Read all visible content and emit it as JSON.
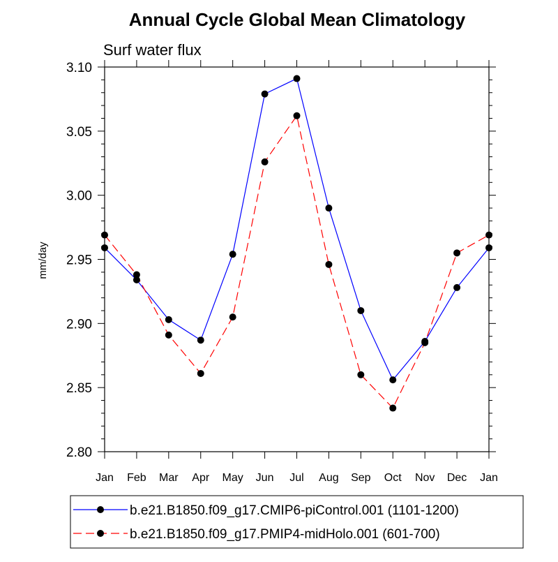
{
  "chart_data": {
    "type": "line",
    "title": "Annual Cycle Global Mean Climatology",
    "subtitle": "Surf water flux",
    "xlabel": "",
    "ylabel": "mm/day",
    "categories": [
      "Jan",
      "Feb",
      "Mar",
      "Apr",
      "May",
      "Jun",
      "Jul",
      "Aug",
      "Sep",
      "Oct",
      "Nov",
      "Dec",
      "Jan"
    ],
    "ylim": [
      2.8,
      3.1
    ],
    "yticks": [
      "2.80",
      "2.85",
      "2.90",
      "2.95",
      "3.00",
      "3.05",
      "3.10"
    ],
    "legend_position": "bottom",
    "grid": false,
    "series": [
      {
        "name": "b.e21.B1850.f09_g17.CMIP6-piControl.001 (1101-1200)",
        "color": "#0000ff",
        "dash": "solid",
        "values": [
          2.959,
          2.934,
          2.903,
          2.887,
          2.954,
          3.079,
          3.091,
          2.99,
          2.91,
          2.856,
          2.886,
          2.928,
          2.959
        ]
      },
      {
        "name": "b.e21.B1850.f09_g17.PMIP4-midHolo.001 (601-700)",
        "color": "#ff0000",
        "dash": "dashed",
        "values": [
          2.969,
          2.938,
          2.891,
          2.861,
          2.905,
          3.026,
          3.062,
          2.946,
          2.86,
          2.834,
          2.885,
          2.955,
          2.969
        ]
      }
    ]
  }
}
